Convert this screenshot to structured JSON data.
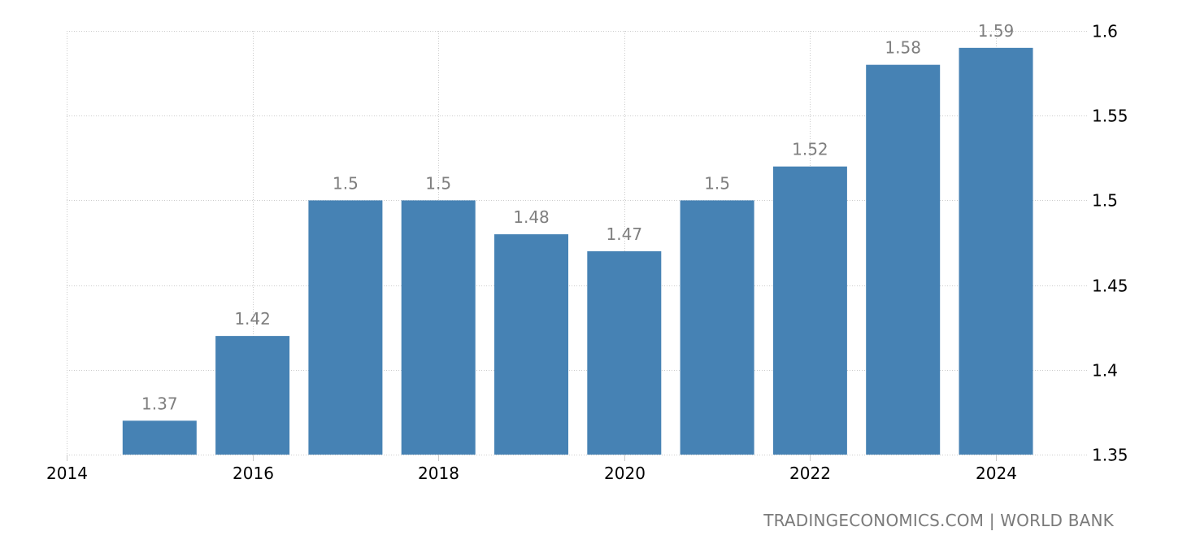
{
  "chart_data": {
    "type": "bar",
    "title": "",
    "xlabel": "",
    "ylabel": "",
    "categories": [
      "2015",
      "2016",
      "2017",
      "2018",
      "2019",
      "2020",
      "2021",
      "2022",
      "2023",
      "2024"
    ],
    "values": [
      1.37,
      1.42,
      1.5,
      1.5,
      1.48,
      1.47,
      1.5,
      1.52,
      1.58,
      1.59
    ],
    "data_labels": [
      "1.37",
      "1.42",
      "1.5",
      "1.5",
      "1.48",
      "1.47",
      "1.5",
      "1.52",
      "1.58",
      "1.59"
    ],
    "ylim": [
      1.35,
      1.6
    ],
    "yticks": [
      1.35,
      1.4,
      1.45,
      1.5,
      1.55,
      1.6
    ],
    "ytick_labels": [
      "1.35",
      "1.4",
      "1.45",
      "1.5",
      "1.55",
      "1.6"
    ],
    "xlim": [
      2014,
      2024.6
    ],
    "xticks": [
      2014,
      2016,
      2018,
      2020,
      2022,
      2024
    ],
    "xtick_labels": [
      "2014",
      "2016",
      "2018",
      "2020",
      "2022",
      "2024"
    ],
    "y_axis_position": "right",
    "grid": true,
    "legend": null,
    "bar_color": "#4682b4"
  },
  "source": "TRADINGECONOMICS.COM | WORLD BANK"
}
